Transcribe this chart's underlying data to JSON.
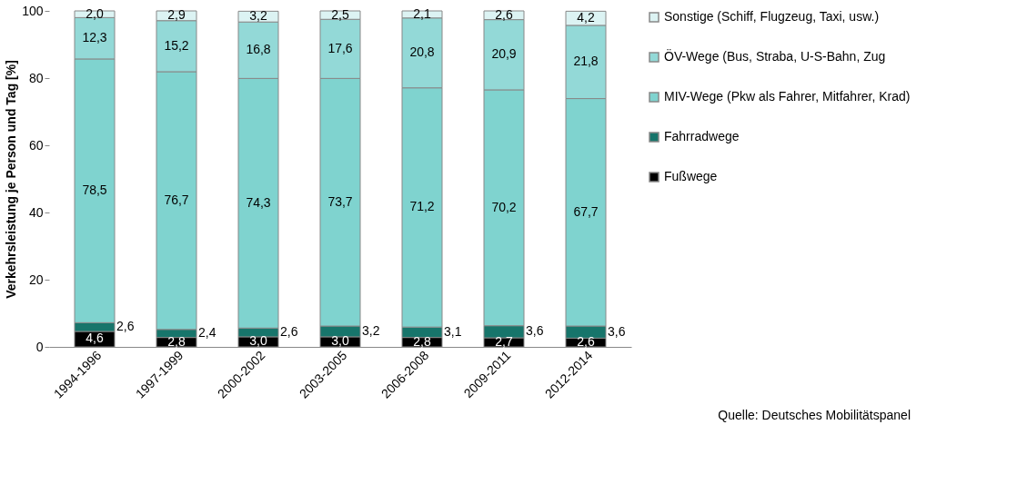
{
  "chart_data": {
    "type": "bar",
    "stacked": true,
    "ylabel": "Verkehrsleistung je Person und Tag [%]",
    "categories": [
      "1994-1996",
      "1997-1999",
      "2000-2002",
      "2003-2005",
      "2006-2008",
      "2009-2011",
      "2012-2014"
    ],
    "series": [
      {
        "name": "Fußwege",
        "color": "#000000",
        "values": [
          4.6,
          2.8,
          3.0,
          3.0,
          2.8,
          2.7,
          2.6
        ],
        "value_labels": [
          "4,6",
          "2,8",
          "3,0",
          "3,0",
          "2,8",
          "2,7",
          "2,6"
        ]
      },
      {
        "name": "Fahrradwege",
        "color": "#17756b",
        "values": [
          2.6,
          2.4,
          2.6,
          3.2,
          3.1,
          3.6,
          3.6
        ],
        "value_labels": [
          "2,6",
          "2,4",
          "2,6",
          "3,2",
          "3,1",
          "3,6",
          "3,6"
        ]
      },
      {
        "name": "MIV-Wege (Pkw als Fahrer, Mitfahrer, Krad)",
        "color": "#7fd3cf",
        "values": [
          78.5,
          76.7,
          74.3,
          73.7,
          71.2,
          70.2,
          67.7
        ],
        "value_labels": [
          "78,5",
          "76,7",
          "74,3",
          "73,7",
          "71,2",
          "70,2",
          "67,7"
        ]
      },
      {
        "name": "ÖV-Wege (Bus, Straba, U-S-Bahn, Zug",
        "color": "#93d9d7",
        "values": [
          12.3,
          15.2,
          16.8,
          17.6,
          20.8,
          20.9,
          21.8
        ],
        "value_labels": [
          "12,3",
          "15,2",
          "16,8",
          "17,6",
          "20,8",
          "20,9",
          "21,8"
        ]
      },
      {
        "name": "Sonstige (Schiff, Flugzeug, Taxi, usw.)",
        "color": "#dcf3f3",
        "values": [
          2.0,
          2.9,
          3.2,
          2.5,
          2.1,
          2.6,
          4.2
        ],
        "value_labels": [
          "2,0",
          "2,9",
          "3,2",
          "2,5",
          "2,1",
          "2,6",
          "4,2"
        ]
      }
    ],
    "ylim": [
      0,
      100
    ],
    "yticks": [
      0,
      20,
      40,
      60,
      80,
      100
    ],
    "grid": false,
    "legend": "right",
    "annotations": [
      "Quelle: Deutsches Mobilitätspanel"
    ]
  }
}
